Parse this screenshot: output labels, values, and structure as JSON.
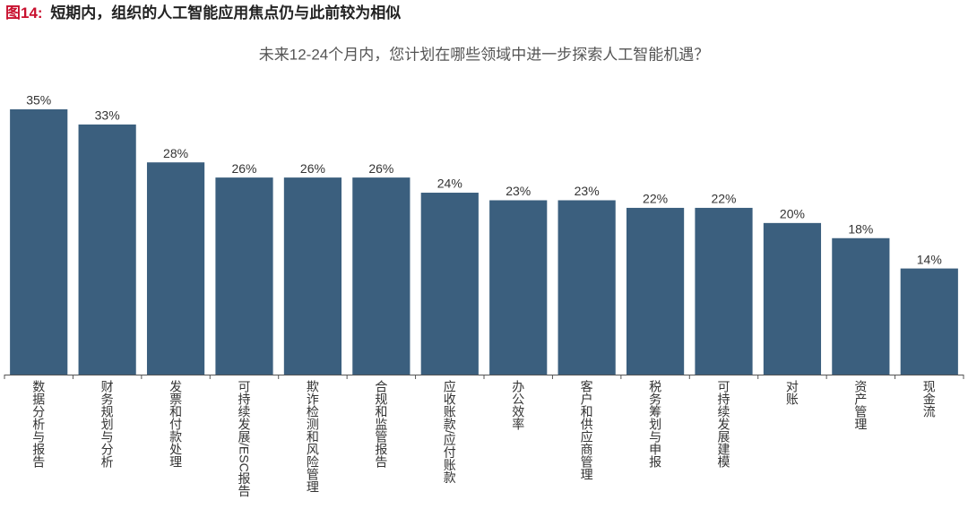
{
  "chart_data": {
    "type": "bar",
    "figure_label": "图14:",
    "title": "短期内，组织的人工智能应用焦点仍与此前较为相似",
    "subtitle": "未来12-24个月内，您计划在哪些领域中进一步探索人工智能机遇？",
    "categories": [
      "数据分析与报告",
      "财务规划与分析",
      "发票和付款处理",
      "可持续发展/ESC报告",
      "欺诈检测和风险管理",
      "合规和监管报告",
      "应收账款/应付账款",
      "办公效率",
      "客户和供应商管理",
      "税务筹划与申报",
      "可持续发展建模",
      "对账",
      "资产管理",
      "现金流"
    ],
    "values": [
      35,
      33,
      28,
      26,
      26,
      26,
      24,
      23,
      23,
      22,
      22,
      20,
      18,
      14
    ],
    "value_labels": [
      "35%",
      "33%",
      "28%",
      "26%",
      "26%",
      "26%",
      "24%",
      "23%",
      "23%",
      "22%",
      "22%",
      "20%",
      "18%",
      "14%"
    ],
    "color": "#3b5f7e",
    "title_label_color": "#c8102e",
    "ylim": [
      0,
      35
    ]
  }
}
